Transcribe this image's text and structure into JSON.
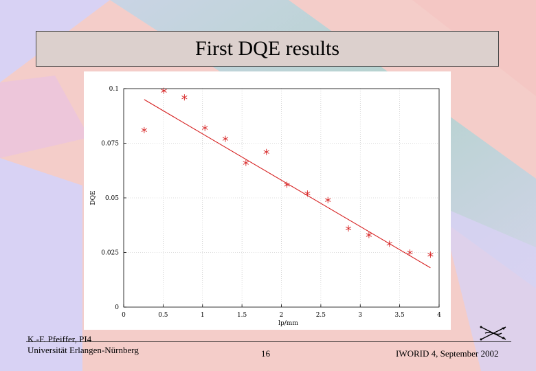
{
  "slide": {
    "title": "First DQE results",
    "footer": {
      "author": "K.-F. Pfeiffer, PI4",
      "institution": "Universität Erlangen-Nürnberg",
      "page_number": "16",
      "event": "IWORID 4, September 2002"
    },
    "logo_icon": "arrows-logo-icon"
  },
  "chart_data": {
    "type": "scatter",
    "xlabel": "lp/mm",
    "ylabel": "DQE",
    "xlim": [
      0,
      4
    ],
    "ylim": [
      0,
      0.1
    ],
    "x_ticks": [
      "0",
      "0.5",
      "1",
      "1.5",
      "2",
      "2.5",
      "3",
      "3.5",
      "4"
    ],
    "y_ticks": [
      "0",
      "0.025",
      "0.05",
      "0.075",
      "0.1"
    ],
    "grid": true,
    "series": [
      {
        "marker": "asterisk",
        "color": "#d62020",
        "x": [
          0.26,
          0.51,
          0.77,
          1.03,
          1.29,
          1.55,
          1.81,
          2.07,
          2.33,
          2.59,
          2.85,
          3.11,
          3.37,
          3.63,
          3.89
        ],
        "y": [
          0.081,
          0.099,
          0.096,
          0.082,
          0.077,
          0.066,
          0.071,
          0.056,
          0.052,
          0.049,
          0.036,
          0.033,
          0.029,
          0.025,
          0.024
        ]
      }
    ],
    "fit_line": {
      "color": "#d62020",
      "x": [
        0.26,
        3.89
      ],
      "y": [
        0.095,
        0.018
      ]
    }
  }
}
